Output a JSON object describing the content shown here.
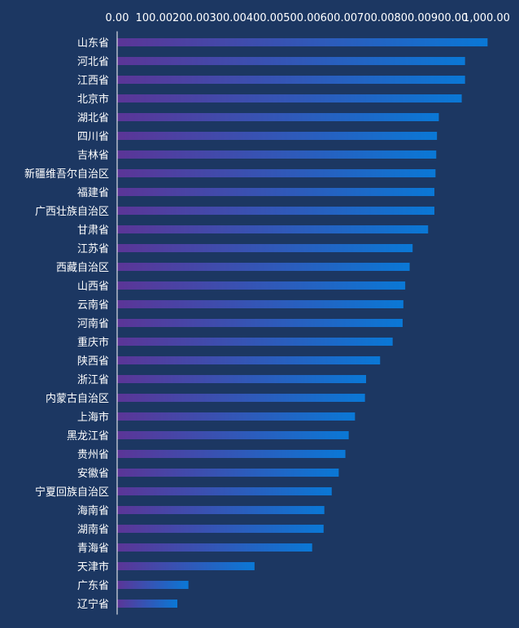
{
  "chart_data": {
    "type": "bar",
    "orientation": "horizontal",
    "title": "",
    "xlabel": "",
    "ylabel": "",
    "xlim": [
      0,
      1000
    ],
    "x_ticks": [
      0,
      100,
      200,
      300,
      400,
      500,
      600,
      700,
      800,
      900,
      1000
    ],
    "x_tick_labels": [
      "0.00",
      "100.00",
      "200.00",
      "300.00",
      "400.00",
      "500.00",
      "600.00",
      "700.00",
      "800.00",
      "900.00",
      "1,000.00"
    ],
    "grid": false,
    "legend": "none",
    "categories": [
      "山东省",
      "河北省",
      "江西省",
      "北京市",
      "湖北省",
      "四川省",
      "吉林省",
      "新疆维吾尔自治区",
      "福建省",
      "广西壮族自治区",
      "甘肃省",
      "江苏省",
      "西藏自治区",
      "山西省",
      "云南省",
      "河南省",
      "重庆市",
      "陕西省",
      "浙江省",
      "内蒙古自治区",
      "上海市",
      "黑龙江省",
      "贵州省",
      "安徽省",
      "宁夏回族自治区",
      "海南省",
      "湖南省",
      "青海省",
      "天津市",
      "广东省",
      "辽宁省"
    ],
    "values": [
      1003,
      942,
      942,
      933,
      871,
      866,
      864,
      862,
      859,
      859,
      842,
      800,
      792,
      780,
      775,
      773,
      746,
      712,
      674,
      671,
      644,
      627,
      618,
      600,
      581,
      561,
      559,
      528,
      372,
      193,
      163
    ],
    "colors": {
      "bar_start": "#5b3597",
      "bar_end": "#0a78d6",
      "axis": "#ffffff",
      "text": "#ffffff",
      "background": "#1c3762"
    }
  }
}
